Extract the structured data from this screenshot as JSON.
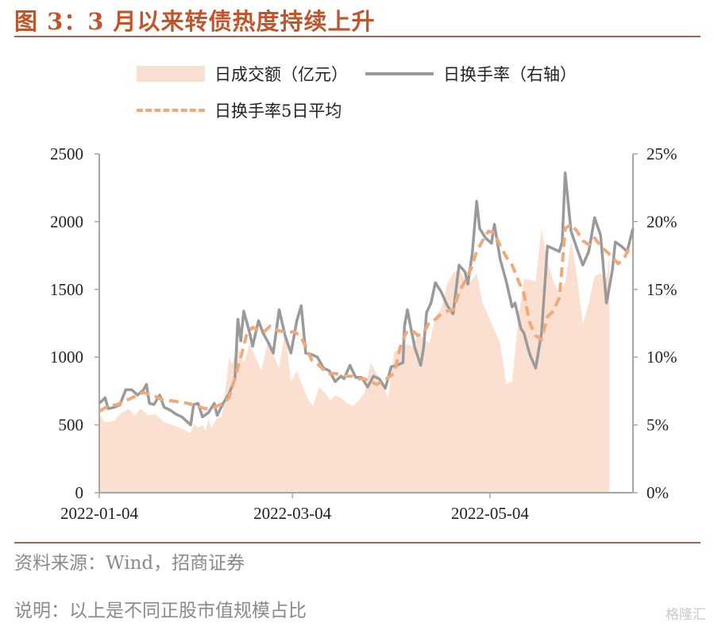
{
  "figure": {
    "title": "图 3：3 月以来转债热度持续上升",
    "source_note": "资料来源：Wind，招商证券",
    "explanation_note": "说明：以上是不同正股市值规模占比",
    "watermark": "格隆汇"
  },
  "colors": {
    "title": "#c0552b",
    "volume_area": "#fbe0d1",
    "turnover_line": "#9a9a9a",
    "turnover_ma5": "#f1a97a",
    "axis": "#a6a6a6"
  },
  "chart_data": {
    "type": "area",
    "legend_position": "top",
    "grid": false,
    "x_tick_labels": [
      "2022-01-04",
      "2022-03-04",
      "2022-05-04"
    ],
    "y_left": {
      "min": 0,
      "max": 2500,
      "ticks": [
        0,
        500,
        1000,
        1500,
        2000,
        2500
      ],
      "tick_labels": [
        "0",
        "500",
        "1000",
        "1500",
        "2000",
        "2500"
      ]
    },
    "y_right": {
      "min": 0,
      "max": 25,
      "unit": "%",
      "ticks": [
        0,
        5,
        10,
        15,
        20,
        25
      ],
      "tick_labels": [
        "0%",
        "5%",
        "10%",
        "15%",
        "20%",
        "25%"
      ]
    },
    "series": [
      {
        "name": "日成交额（亿元）",
        "kind": "area",
        "axis": "left",
        "points": [
          [
            0,
            580
          ],
          [
            4,
            520
          ],
          [
            10,
            530
          ],
          [
            14,
            580
          ],
          [
            20,
            620
          ],
          [
            24,
            570
          ],
          [
            28,
            620
          ],
          [
            33,
            570
          ],
          [
            38,
            580
          ],
          [
            40,
            560
          ],
          [
            44,
            520
          ],
          [
            50,
            500
          ],
          [
            56,
            470
          ],
          [
            62,
            440
          ],
          [
            64,
            510
          ],
          [
            67,
            480
          ],
          [
            70,
            500
          ],
          [
            72,
            460
          ],
          [
            74,
            540
          ],
          [
            76,
            480
          ],
          [
            80,
            550
          ],
          [
            83,
            560
          ],
          [
            86,
            800
          ],
          [
            88,
            1000
          ],
          [
            90,
            950
          ],
          [
            94,
            1080
          ],
          [
            98,
            960
          ],
          [
            102,
            1100
          ],
          [
            106,
            1000
          ],
          [
            110,
            900
          ],
          [
            114,
            1100
          ],
          [
            118,
            1020
          ],
          [
            122,
            920
          ],
          [
            126,
            1200
          ],
          [
            130,
            820
          ],
          [
            134,
            900
          ],
          [
            138,
            780
          ],
          [
            142,
            680
          ],
          [
            145,
            640
          ],
          [
            149,
            780
          ],
          [
            153,
            740
          ],
          [
            157,
            680
          ],
          [
            160,
            720
          ],
          [
            164,
            700
          ],
          [
            168,
            660
          ],
          [
            172,
            640
          ],
          [
            176,
            680
          ],
          [
            180,
            740
          ],
          [
            184,
            960
          ],
          [
            188,
            880
          ],
          [
            192,
            800
          ],
          [
            196,
            700
          ],
          [
            200,
            1040
          ],
          [
            204,
            1060
          ],
          [
            208,
            1100
          ],
          [
            212,
            1080
          ],
          [
            216,
            1160
          ],
          [
            220,
            1140
          ],
          [
            224,
            1100
          ],
          [
            228,
            1300
          ],
          [
            232,
            1360
          ],
          [
            236,
            1540
          ],
          [
            240,
            1620
          ],
          [
            244,
            1650
          ],
          [
            248,
            1580
          ],
          [
            252,
            1560
          ],
          [
            256,
            1620
          ],
          [
            260,
            1400
          ],
          [
            264,
            1300
          ],
          [
            268,
            1200
          ],
          [
            272,
            1100
          ],
          [
            276,
            800
          ],
          [
            280,
            820
          ],
          [
            284,
            1260
          ],
          [
            288,
            1580
          ],
          [
            292,
            1570
          ],
          [
            296,
            1560
          ],
          [
            300,
            1950
          ],
          [
            304,
            1700
          ],
          [
            308,
            1560
          ],
          [
            312,
            1480
          ],
          [
            316,
            1550
          ],
          [
            320,
            1860
          ],
          [
            324,
            1600
          ],
          [
            328,
            1240
          ],
          [
            332,
            1400
          ],
          [
            336,
            1600
          ],
          [
            340,
            1620
          ],
          [
            344,
            1580
          ],
          [
            346,
            1750
          ]
        ]
      },
      {
        "name": "日换手率（右轴）",
        "kind": "line",
        "axis": "right",
        "points": [
          [
            0,
            6.6
          ],
          [
            4,
            7.0
          ],
          [
            6,
            6.2
          ],
          [
            10,
            6.3
          ],
          [
            14,
            6.5
          ],
          [
            18,
            7.6
          ],
          [
            22,
            7.6
          ],
          [
            26,
            7.2
          ],
          [
            30,
            7.6
          ],
          [
            32,
            8.0
          ],
          [
            34,
            6.6
          ],
          [
            37,
            6.5
          ],
          [
            41,
            7.2
          ],
          [
            44,
            6.3
          ],
          [
            48,
            6.1
          ],
          [
            52,
            5.8
          ],
          [
            56,
            5.6
          ],
          [
            62,
            5.0
          ],
          [
            64,
            6.5
          ],
          [
            67,
            6.6
          ],
          [
            70,
            5.6
          ],
          [
            74,
            5.9
          ],
          [
            78,
            6.6
          ],
          [
            80,
            5.7
          ],
          [
            84,
            6.6
          ],
          [
            88,
            7.3
          ],
          [
            92,
            8.4
          ],
          [
            94,
            12.8
          ],
          [
            96,
            11.2
          ],
          [
            98,
            13.4
          ],
          [
            102,
            11.8
          ],
          [
            104,
            10.8
          ],
          [
            108,
            12.7
          ],
          [
            111,
            11.8
          ],
          [
            115,
            11.0
          ],
          [
            118,
            10.3
          ],
          [
            122,
            13.5
          ],
          [
            126,
            11.6
          ],
          [
            130,
            10.3
          ],
          [
            134,
            12.7
          ],
          [
            137,
            13.8
          ],
          [
            140,
            10.3
          ],
          [
            144,
            10.2
          ],
          [
            148,
            10.0
          ],
          [
            152,
            9.2
          ],
          [
            156,
            9.0
          ],
          [
            160,
            8.2
          ],
          [
            164,
            8.6
          ],
          [
            166,
            8.4
          ],
          [
            170,
            9.4
          ],
          [
            174,
            8.5
          ],
          [
            178,
            8.5
          ],
          [
            182,
            7.8
          ],
          [
            186,
            8.6
          ],
          [
            190,
            8.4
          ],
          [
            194,
            7.7
          ],
          [
            198,
            9.3
          ],
          [
            202,
            9.4
          ],
          [
            206,
            9.6
          ],
          [
            207,
            12.3
          ],
          [
            209,
            13.5
          ],
          [
            212,
            11.8
          ],
          [
            214,
            10.7
          ],
          [
            218,
            9.4
          ],
          [
            220,
            10.7
          ],
          [
            222,
            13.3
          ],
          [
            225,
            14.0
          ],
          [
            228,
            15.5
          ],
          [
            232,
            14.8
          ],
          [
            236,
            13.8
          ],
          [
            240,
            13.2
          ],
          [
            244,
            16.8
          ],
          [
            248,
            16.3
          ],
          [
            250,
            15.4
          ],
          [
            253,
            17.7
          ],
          [
            256,
            21.5
          ],
          [
            258,
            19.5
          ],
          [
            262,
            18.8
          ],
          [
            266,
            18.4
          ],
          [
            268,
            19.8
          ],
          [
            272,
            17.2
          ],
          [
            276,
            15.6
          ],
          [
            280,
            13.7
          ],
          [
            282,
            14.0
          ],
          [
            286,
            12.1
          ],
          [
            288,
            11.8
          ],
          [
            292,
            10.2
          ],
          [
            296,
            9.2
          ],
          [
            300,
            11.8
          ],
          [
            304,
            18.2
          ],
          [
            308,
            18.0
          ],
          [
            312,
            17.8
          ],
          [
            314,
            18.5
          ],
          [
            316,
            23.6
          ],
          [
            320,
            19.3
          ],
          [
            324,
            18.0
          ],
          [
            328,
            16.8
          ],
          [
            332,
            17.8
          ],
          [
            336,
            20.3
          ],
          [
            340,
            19.0
          ],
          [
            344,
            14.0
          ],
          [
            348,
            16.4
          ],
          [
            350,
            18.5
          ],
          [
            354,
            18.2
          ],
          [
            358,
            17.8
          ],
          [
            362,
            19.5
          ]
        ]
      },
      {
        "name": "日换手率5日平均",
        "kind": "dashed-line",
        "axis": "right",
        "points": [
          [
            0,
            6.0
          ],
          [
            6,
            6.4
          ],
          [
            12,
            6.5
          ],
          [
            18,
            6.8
          ],
          [
            24,
            7.1
          ],
          [
            30,
            7.4
          ],
          [
            36,
            7.2
          ],
          [
            42,
            6.9
          ],
          [
            48,
            6.8
          ],
          [
            54,
            6.7
          ],
          [
            60,
            6.6
          ],
          [
            66,
            6.4
          ],
          [
            72,
            6.2
          ],
          [
            78,
            6.3
          ],
          [
            84,
            6.6
          ],
          [
            88,
            7.0
          ],
          [
            92,
            8.5
          ],
          [
            96,
            10.0
          ],
          [
            100,
            11.7
          ],
          [
            104,
            12.2
          ],
          [
            108,
            12.0
          ],
          [
            112,
            11.9
          ],
          [
            116,
            12.3
          ],
          [
            120,
            12.0
          ],
          [
            124,
            11.9
          ],
          [
            128,
            11.8
          ],
          [
            132,
            11.9
          ],
          [
            136,
            11.6
          ],
          [
            140,
            10.8
          ],
          [
            144,
            9.8
          ],
          [
            148,
            9.5
          ],
          [
            152,
            9.1
          ],
          [
            156,
            8.8
          ],
          [
            160,
            8.8
          ],
          [
            164,
            8.7
          ],
          [
            168,
            8.6
          ],
          [
            172,
            8.6
          ],
          [
            176,
            8.4
          ],
          [
            180,
            8.4
          ],
          [
            184,
            8.2
          ],
          [
            188,
            8.0
          ],
          [
            192,
            8.2
          ],
          [
            196,
            8.5
          ],
          [
            200,
            8.8
          ],
          [
            204,
            10.7
          ],
          [
            208,
            11.8
          ],
          [
            212,
            12.0
          ],
          [
            216,
            11.6
          ],
          [
            220,
            11.8
          ],
          [
            224,
            12.6
          ],
          [
            228,
            12.8
          ],
          [
            232,
            13.2
          ],
          [
            236,
            13.4
          ],
          [
            240,
            13.5
          ],
          [
            244,
            14.8
          ],
          [
            248,
            15.6
          ],
          [
            252,
            16.5
          ],
          [
            256,
            17.8
          ],
          [
            260,
            18.6
          ],
          [
            264,
            19.3
          ],
          [
            268,
            19.2
          ],
          [
            272,
            18.2
          ],
          [
            276,
            17.4
          ],
          [
            280,
            16.8
          ],
          [
            284,
            15.7
          ],
          [
            288,
            14.7
          ],
          [
            292,
            12.5
          ],
          [
            296,
            11.6
          ],
          [
            300,
            11.3
          ],
          [
            304,
            13.0
          ],
          [
            308,
            13.4
          ],
          [
            312,
            14.4
          ],
          [
            314,
            16.8
          ],
          [
            316,
            19.5
          ],
          [
            320,
            19.8
          ],
          [
            324,
            19.3
          ],
          [
            328,
            18.6
          ],
          [
            332,
            18.3
          ],
          [
            336,
            18.8
          ],
          [
            340,
            18.2
          ],
          [
            344,
            17.8
          ],
          [
            348,
            17.4
          ],
          [
            352,
            16.9
          ],
          [
            356,
            17.3
          ],
          [
            360,
            18.2
          ]
        ]
      }
    ]
  }
}
